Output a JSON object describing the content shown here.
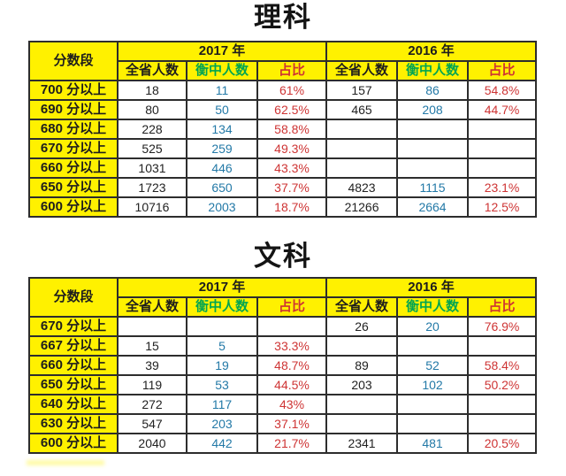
{
  "colors": {
    "header_bg": "#FFF100",
    "green_header": "#00A551",
    "red_ratio": "#CE3434",
    "blue_count": "#2379A7",
    "border": "#2d2d2d",
    "text": "#1d1d1d"
  },
  "tables": [
    {
      "title": "理科",
      "header": {
        "score_col": "分数段",
        "year_2017": "2017 年",
        "year_2016": "2016 年"
      },
      "subheaders": [
        "全省人数",
        "衡中人数",
        "占比",
        "全省人数",
        "衡中人数",
        "占比"
      ],
      "rows": [
        {
          "score": "700 分以上",
          "values": [
            "18",
            "11",
            "61%",
            "157",
            "86",
            "54.8%"
          ]
        },
        {
          "score": "690 分以上",
          "values": [
            "80",
            "50",
            "62.5%",
            "465",
            "208",
            "44.7%"
          ]
        },
        {
          "score": "680 分以上",
          "values": [
            "228",
            "134",
            "58.8%",
            "",
            "",
            ""
          ]
        },
        {
          "score": "670 分以上",
          "values": [
            "525",
            "259",
            "49.3%",
            "",
            "",
            ""
          ]
        },
        {
          "score": "660 分以上",
          "values": [
            "1031",
            "446",
            "43.3%",
            "",
            "",
            ""
          ]
        },
        {
          "score": "650 分以上",
          "values": [
            "1723",
            "650",
            "37.7%",
            "4823",
            "1115",
            "23.1%"
          ]
        },
        {
          "score": "600 分以上",
          "values": [
            "10716",
            "2003",
            "18.7%",
            "21266",
            "2664",
            "12.5%"
          ]
        }
      ]
    },
    {
      "title": "文科",
      "header": {
        "score_col": "分数段",
        "year_2017": "2017 年",
        "year_2016": "2016 年"
      },
      "subheaders": [
        "全省人数",
        "衡中人数",
        "占比",
        "全省人数",
        "衡中人数",
        "占比"
      ],
      "rows": [
        {
          "score": "670 分以上",
          "values": [
            "",
            "",
            "",
            "26",
            "20",
            "76.9%"
          ]
        },
        {
          "score": "667 分以上",
          "values": [
            "15",
            "5",
            "33.3%",
            "",
            "",
            ""
          ]
        },
        {
          "score": "660 分以上",
          "values": [
            "39",
            "19",
            "48.7%",
            "89",
            "52",
            "58.4%"
          ]
        },
        {
          "score": "650 分以上",
          "values": [
            "119",
            "53",
            "44.5%",
            "203",
            "102",
            "50.2%"
          ]
        },
        {
          "score": "640 分以上",
          "values": [
            "272",
            "117",
            "43%",
            "",
            "",
            ""
          ]
        },
        {
          "score": "630 分以上",
          "values": [
            "547",
            "203",
            "37.1%",
            "",
            "",
            ""
          ]
        },
        {
          "score": "600 分以上",
          "values": [
            "2040",
            "442",
            "21.7%",
            "2341",
            "481",
            "20.5%"
          ]
        }
      ]
    }
  ],
  "chart_data": [
    {
      "type": "table",
      "title": "理科",
      "columns": [
        "分数段",
        "2017年 全省人数",
        "2017年 衡中人数",
        "2017年 占比",
        "2016年 全省人数",
        "2016年 衡中人数",
        "2016年 占比"
      ],
      "rows": [
        [
          "700 分以上",
          18,
          11,
          "61%",
          157,
          86,
          "54.8%"
        ],
        [
          "690 分以上",
          80,
          50,
          "62.5%",
          465,
          208,
          "44.7%"
        ],
        [
          "680 分以上",
          228,
          134,
          "58.8%",
          null,
          null,
          null
        ],
        [
          "670 分以上",
          525,
          259,
          "49.3%",
          null,
          null,
          null
        ],
        [
          "660 分以上",
          1031,
          446,
          "43.3%",
          null,
          null,
          null
        ],
        [
          "650 分以上",
          1723,
          650,
          "37.7%",
          4823,
          1115,
          "23.1%"
        ],
        [
          "600 分以上",
          10716,
          2003,
          "18.7%",
          21266,
          2664,
          "12.5%"
        ]
      ]
    },
    {
      "type": "table",
      "title": "文科",
      "columns": [
        "分数段",
        "2017年 全省人数",
        "2017年 衡中人数",
        "2017年 占比",
        "2016年 全省人数",
        "2016年 衡中人数",
        "2016年 占比"
      ],
      "rows": [
        [
          "670 分以上",
          null,
          null,
          null,
          26,
          20,
          "76.9%"
        ],
        [
          "667 分以上",
          15,
          5,
          "33.3%",
          null,
          null,
          null
        ],
        [
          "660 分以上",
          39,
          19,
          "48.7%",
          89,
          52,
          "58.4%"
        ],
        [
          "650 分以上",
          119,
          53,
          "44.5%",
          203,
          102,
          "50.2%"
        ],
        [
          "640 分以上",
          272,
          117,
          "43%",
          null,
          null,
          null
        ],
        [
          "630 分以上",
          547,
          203,
          "37.1%",
          null,
          null,
          null
        ],
        [
          "600 分以上",
          2040,
          442,
          "21.7%",
          2341,
          481,
          "20.5%"
        ]
      ]
    }
  ]
}
